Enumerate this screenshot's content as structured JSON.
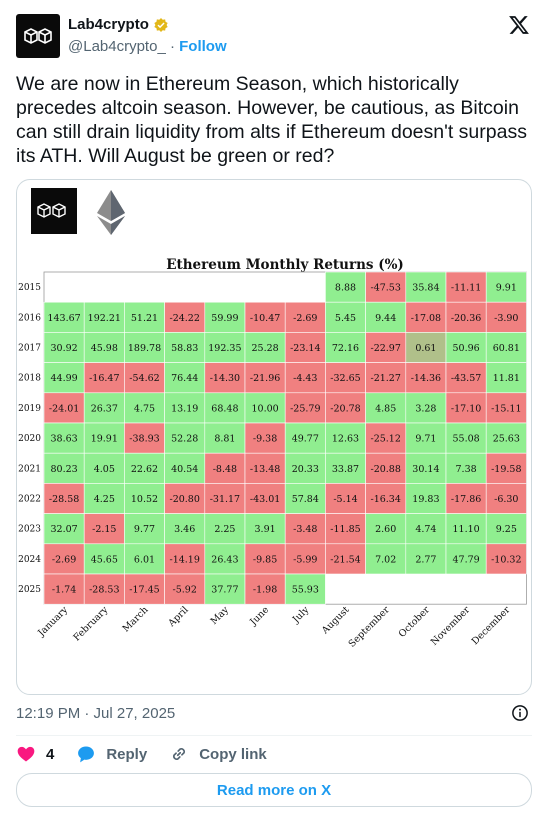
{
  "author": {
    "name": "Lab4crypto",
    "handle": "@Lab4crypto_",
    "separator": "·",
    "follow_label": "Follow"
  },
  "tweet": {
    "text": "We are now in Ethereum Season, which historically precedes altcoin season. However, be cautious, as Bitcoin can still drain liquidity from alts if Ethereum doesn't surpass its ATH. Will August be green or red?",
    "timestamp": "12:19 PM · Jul 27, 2025"
  },
  "actions": {
    "like_count": "4",
    "reply_label": "Reply",
    "copy_label": "Copy link"
  },
  "read_more_label": "Read more on X",
  "colors": {
    "positive": "#90ee90",
    "negative": "#f08080",
    "neutral": "#b0c08a",
    "link": "#1d9bf0",
    "like": "#f91880"
  },
  "icons": [
    "x-logo-icon",
    "verified-badge-icon",
    "heart-icon",
    "reply-icon",
    "link-icon",
    "info-icon",
    "lab4crypto-logo",
    "ethereum-logo"
  ],
  "chart_data": {
    "type": "heatmap",
    "title": "Ethereum Monthly Returns (%)",
    "columns": [
      "January",
      "February",
      "March",
      "April",
      "May",
      "June",
      "July",
      "August",
      "September",
      "October",
      "November",
      "December"
    ],
    "rows": [
      "2015",
      "2016",
      "2017",
      "2018",
      "2019",
      "2020",
      "2021",
      "2022",
      "2023",
      "2024",
      "2025"
    ],
    "values": [
      [
        null,
        null,
        null,
        null,
        null,
        null,
        null,
        8.88,
        -47.53,
        35.84,
        -11.11,
        9.91
      ],
      [
        143.67,
        192.21,
        51.21,
        -24.22,
        59.99,
        -10.47,
        -2.69,
        5.45,
        9.44,
        -17.08,
        -20.36,
        -3.9
      ],
      [
        30.92,
        45.98,
        189.78,
        58.83,
        192.35,
        25.28,
        -23.14,
        72.16,
        -22.97,
        0.61,
        50.96,
        60.81
      ],
      [
        44.99,
        -16.47,
        -54.62,
        76.44,
        -14.3,
        -21.96,
        -4.43,
        -32.65,
        -21.27,
        -14.36,
        -43.57,
        11.81
      ],
      [
        -24.01,
        26.37,
        4.75,
        13.19,
        68.48,
        10.0,
        -25.79,
        -20.78,
        4.85,
        3.28,
        -17.1,
        -15.11
      ],
      [
        38.63,
        19.91,
        -38.93,
        52.28,
        8.81,
        -9.38,
        49.77,
        12.63,
        -25.12,
        9.71,
        55.08,
        25.63
      ],
      [
        80.23,
        4.05,
        22.62,
        40.54,
        -8.48,
        -13.48,
        20.33,
        33.87,
        -20.88,
        30.14,
        7.38,
        -19.58
      ],
      [
        -28.58,
        4.25,
        10.52,
        -20.8,
        -31.17,
        -43.01,
        57.84,
        -5.14,
        -16.34,
        19.83,
        -17.86,
        -6.3
      ],
      [
        32.07,
        -2.15,
        9.77,
        3.46,
        2.25,
        3.91,
        -3.48,
        -11.85,
        2.6,
        4.74,
        11.1,
        9.25
      ],
      [
        -2.69,
        45.65,
        6.01,
        -14.19,
        26.43,
        -9.85,
        -5.99,
        -21.54,
        7.02,
        2.77,
        47.79,
        -10.32
      ],
      [
        -1.74,
        -28.53,
        -17.45,
        -5.92,
        37.77,
        -1.98,
        55.93,
        null,
        null,
        null,
        null,
        null
      ]
    ],
    "labels": [
      [
        "",
        "",
        "",
        "",
        "",
        "",
        "",
        "8.88",
        "-47.53",
        "35.84",
        "-11.11",
        "9.91"
      ],
      [
        "143.67",
        "192.21",
        "51.21",
        "-24.22",
        "59.99",
        "-10.47",
        "-2.69",
        "5.45",
        "9.44",
        "-17.08",
        "-20.36",
        "-3.90"
      ],
      [
        "30.92",
        "45.98",
        "189.78",
        "58.83",
        "192.35",
        "25.28",
        "-23.14",
        "72.16",
        "-22.97",
        "0.61",
        "50.96",
        "60.81"
      ],
      [
        "44.99",
        "-16.47",
        "-54.62",
        "76.44",
        "-14.30",
        "-21.96",
        "-4.43",
        "-32.65",
        "-21.27",
        "-14.36",
        "-43.57",
        "11.81"
      ],
      [
        "-24.01",
        "26.37",
        "4.75",
        "13.19",
        "68.48",
        "10.00",
        "-25.79",
        "-20.78",
        "4.85",
        "3.28",
        "-17.10",
        "-15.11"
      ],
      [
        "38.63",
        "19.91",
        "-38.93",
        "52.28",
        "8.81",
        "-9.38",
        "49.77",
        "12.63",
        "-25.12",
        "9.71",
        "55.08",
        "25.63"
      ],
      [
        "80.23",
        "4.05",
        "22.62",
        "40.54",
        "-8.48",
        "-13.48",
        "20.33",
        "33.87",
        "-20.88",
        "30.14",
        "7.38",
        "-19.58"
      ],
      [
        "-28.58",
        "4.25",
        "10.52",
        "-20.80",
        "-31.17",
        "-43.01",
        "57.84",
        "-5.14",
        "-16.34",
        "19.83",
        "-17.86",
        "-6.30"
      ],
      [
        "32.07",
        "-2.15",
        "9.77",
        "3.46",
        "2.25",
        "3.91",
        "-3.48",
        "-11.85",
        "2.60",
        "4.74",
        "11.10",
        "9.25"
      ],
      [
        "-2.69",
        "45.65",
        "6.01",
        "-14.19",
        "26.43",
        "-9.85",
        "-5.99",
        "-21.54",
        "7.02",
        "2.77",
        "47.79",
        "-10.32"
      ],
      [
        "-1.74",
        "-28.53",
        "-17.45",
        "-5.92",
        "37.77",
        "-1.98",
        "55.93",
        "",
        "",
        "",
        "",
        ""
      ]
    ]
  }
}
